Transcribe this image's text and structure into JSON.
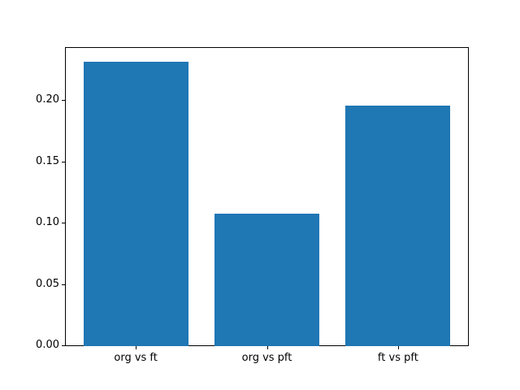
{
  "chart_data": {
    "type": "bar",
    "categories": [
      "org vs ft",
      "org vs pft",
      "ft vs pft"
    ],
    "values": [
      0.232,
      0.108,
      0.196
    ],
    "title": "",
    "xlabel": "",
    "ylabel": "",
    "ylim": [
      0,
      0.244
    ],
    "yticks": [
      0.0,
      0.05,
      0.1,
      0.15,
      0.2
    ],
    "ytick_labels": [
      "0.00",
      "0.05",
      "0.10",
      "0.15",
      "0.20"
    ],
    "bar_color": "#1f77b4",
    "background_color": "#ffffff",
    "spine_color": "#000000",
    "grid": false,
    "legend": "none",
    "bar_width_fraction": 0.8
  }
}
